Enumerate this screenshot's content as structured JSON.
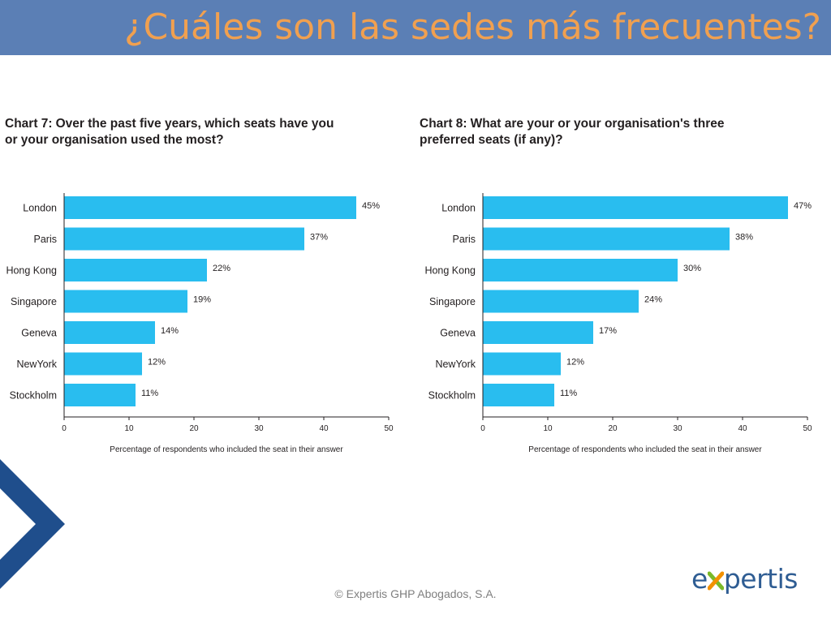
{
  "header": {
    "title": "¿Cuáles son las sedes más frecuentes?"
  },
  "colors": {
    "title_bar": "#5b7fb5",
    "title_text": "#f0a050",
    "bar": "#29bdef",
    "chevron": "#1f4e8c",
    "logo_green": "#7ab929",
    "logo_orange": "#f29100",
    "logo_blue": "#2f5d93"
  },
  "chart_data": [
    {
      "type": "bar",
      "orientation": "horizontal",
      "title_prefix": "Chart 7:",
      "title": "Over the past five years, which seats have you or your organisation used the most?",
      "categories": [
        "London",
        "Paris",
        "Hong Kong",
        "Singapore",
        "Geneva",
        "NewYork",
        "Stockholm"
      ],
      "values": [
        45,
        37,
        22,
        19,
        14,
        12,
        11
      ],
      "value_labels": [
        "45%",
        "37%",
        "22%",
        "19%",
        "14%",
        "12%",
        "11%"
      ],
      "xlabel": "Percentage of respondents who included the seat in their answer",
      "xlim": [
        0,
        50
      ],
      "xticks": [
        0,
        10,
        20,
        30,
        40,
        50
      ],
      "grid": false
    },
    {
      "type": "bar",
      "orientation": "horizontal",
      "title_prefix": "Chart 8:",
      "title": "What are your or your organisation's three preferred seats (if any)?",
      "categories": [
        "London",
        "Paris",
        "Hong Kong",
        "Singapore",
        "Geneva",
        "NewYork",
        "Stockholm"
      ],
      "values": [
        47,
        38,
        30,
        24,
        17,
        12,
        11
      ],
      "value_labels": [
        "47%",
        "38%",
        "30%",
        "24%",
        "17%",
        "12%",
        "11%"
      ],
      "xlabel": "Percentage of respondents who included the seat in their answer",
      "xlim": [
        0,
        50
      ],
      "xticks": [
        0,
        10,
        20,
        30,
        40,
        50
      ],
      "grid": false
    }
  ],
  "footer": {
    "copyright": "© Expertis GHP Abogados, S.A."
  },
  "logo": {
    "text_prefix": "e",
    "text_suffix": "pertis",
    "icon": "x-cross-icon"
  },
  "decor": {
    "icon": "chevron-right-icon"
  }
}
